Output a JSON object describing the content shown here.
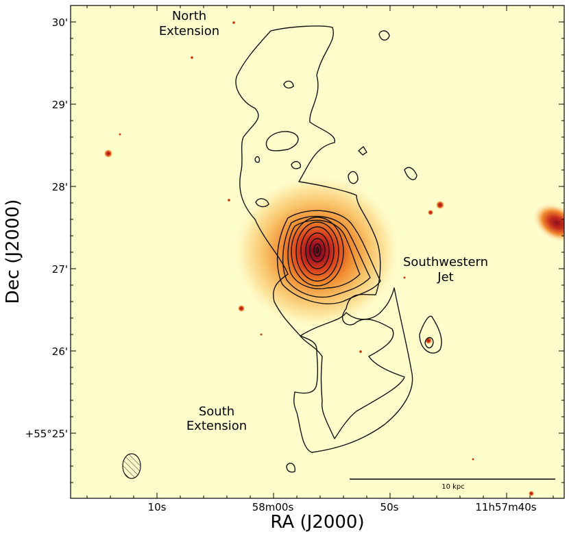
{
  "figure": {
    "x_axis_label": "RA (J2000)",
    "y_axis_label": "Dec (J2000)",
    "x_ticks": [
      "10s",
      "58m00s",
      "50s",
      "11h57m40s"
    ],
    "y_ticks": [
      "30'",
      "29'",
      "28'",
      "27'",
      "26'",
      "+55°25'"
    ],
    "annotations": {
      "north": [
        "North",
        "Extension"
      ],
      "southwestern": [
        "Southwestern",
        "Jet"
      ],
      "south": [
        "South",
        "Extension"
      ]
    },
    "scale_bar_label": "10 kpc",
    "colors": {
      "background": "#fefdcc",
      "halo": "#f59a3a",
      "core": "#6e0a1e",
      "contour": "#111111"
    }
  }
}
